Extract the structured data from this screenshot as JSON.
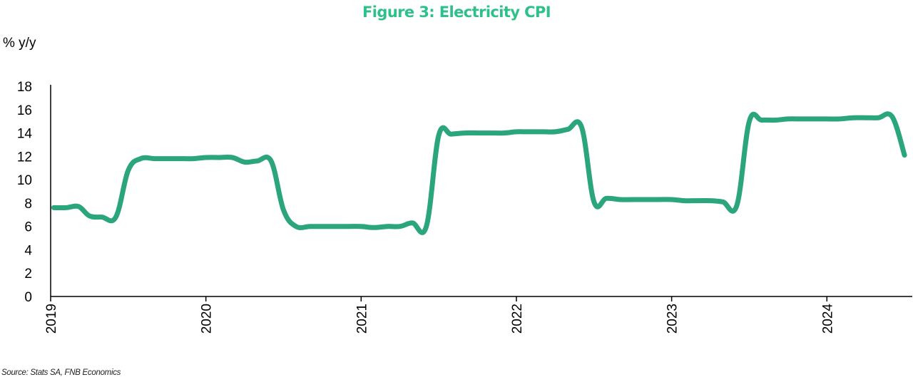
{
  "title": "Figure 3: Electricity CPI",
  "title_color": "#2EC08A",
  "line_color": "#2BA57C",
  "source": "Source: Stats SA, FNB Economics",
  "chart_data": {
    "type": "line",
    "title": "Figure 3: Electricity CPI",
    "ylabel": "% y/y",
    "xlabel": "",
    "ylim": [
      0,
      18
    ],
    "yticks": [
      0,
      2,
      4,
      6,
      8,
      10,
      12,
      14,
      16,
      18
    ],
    "xlim": [
      2019.0,
      2024.55
    ],
    "xticks": [
      "2019",
      "2020",
      "2021",
      "2022",
      "2023",
      "2024"
    ],
    "grid": false,
    "legend": "none",
    "series": [
      {
        "x": [
          2019.02,
          2019.1,
          2019.18,
          2019.25,
          2019.33,
          2019.42,
          2019.5,
          2019.58,
          2019.67,
          2019.75,
          2019.83,
          2019.92,
          2020.0,
          2020.08,
          2020.17,
          2020.25,
          2020.33,
          2020.42,
          2020.5,
          2020.58,
          2020.67,
          2020.75,
          2020.83,
          2020.92,
          2021.0,
          2021.08,
          2021.17,
          2021.25,
          2021.33,
          2021.42,
          2021.5,
          2021.58,
          2021.67,
          2021.75,
          2021.83,
          2021.92,
          2022.0,
          2022.08,
          2022.17,
          2022.25,
          2022.33,
          2022.42,
          2022.5,
          2022.58,
          2022.67,
          2022.75,
          2022.83,
          2022.92,
          2023.0,
          2023.08,
          2023.17,
          2023.25,
          2023.33,
          2023.42,
          2023.5,
          2023.58,
          2023.67,
          2023.75,
          2023.83,
          2023.92,
          2024.0,
          2024.08,
          2024.17,
          2024.25,
          2024.33,
          2024.42,
          2024.5
        ],
        "values": [
          7.6,
          7.6,
          7.7,
          6.9,
          6.8,
          6.8,
          10.8,
          11.8,
          11.8,
          11.8,
          11.8,
          11.8,
          11.9,
          11.9,
          11.9,
          11.5,
          11.6,
          11.6,
          7.4,
          6.0,
          6.0,
          6.0,
          6.0,
          6.0,
          6.0,
          5.9,
          6.0,
          6.0,
          6.3,
          6.0,
          13.8,
          13.9,
          14.0,
          14.0,
          14.0,
          14.0,
          14.1,
          14.1,
          14.1,
          14.1,
          14.3,
          14.5,
          8.1,
          8.4,
          8.3,
          8.3,
          8.3,
          8.3,
          8.3,
          8.2,
          8.2,
          8.2,
          8.1,
          7.8,
          15.0,
          15.1,
          15.1,
          15.2,
          15.2,
          15.2,
          15.2,
          15.2,
          15.3,
          15.3,
          15.3,
          15.4,
          12.1
        ]
      }
    ]
  }
}
